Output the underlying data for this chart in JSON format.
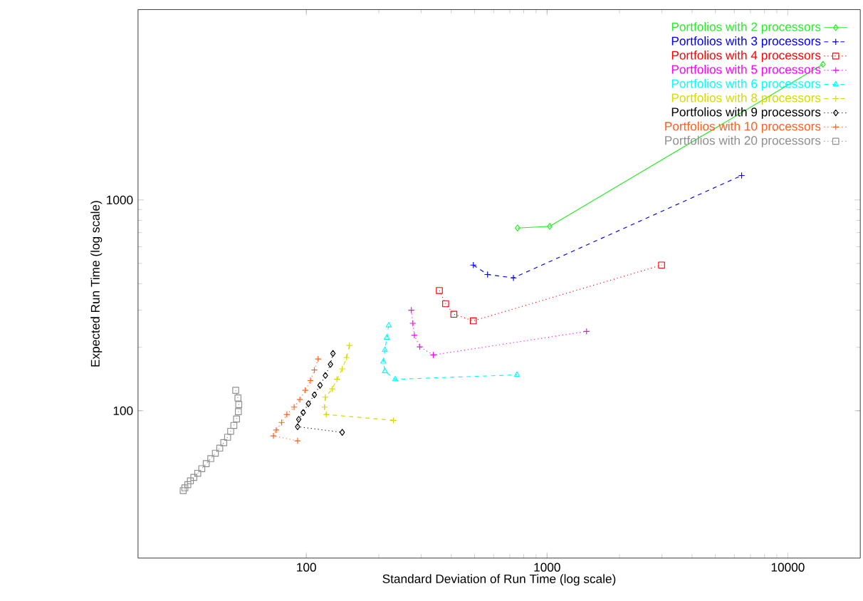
{
  "chart_data": {
    "type": "line",
    "log": "xy",
    "legend": "top right",
    "xlabel": "Standard Deviation of Run Time (log scale)",
    "ylabel": "Expected Run Time (log scale)",
    "xlim": [
      20,
      20000
    ],
    "ylim": [
      20,
      8000
    ],
    "xticks": [
      100,
      1000,
      10000
    ],
    "yticks": [
      100,
      1000
    ],
    "series": [
      {
        "name": "Portfolios with 2 processors",
        "color": "#22ee22",
        "marker": "diamond",
        "line_style": "solid",
        "x": [
          754,
          1026,
          14000
        ],
        "values": [
          736,
          750,
          4400
        ]
      },
      {
        "name": "Portfolios with 3 processors",
        "color": "#0000ff",
        "marker": "cross",
        "line_style": "dashed",
        "x": [
          494,
          566,
          725,
          6430
        ],
        "values": [
          491,
          443,
          427,
          1306
        ]
      },
      {
        "name": "Portfolios with 4 processors",
        "color": "#ff0000",
        "marker": "square",
        "line_style": "dotted",
        "x": [
          357,
          379,
          410,
          494,
          2990
        ],
        "values": [
          372,
          322,
          287,
          267,
          491
        ]
      },
      {
        "name": "Portfolios with  5 processors",
        "color": "#ff00ff",
        "marker": "cross",
        "line_style": "dotted",
        "x": [
          273,
          277,
          281,
          296,
          337,
          1459
        ],
        "values": [
          300,
          260,
          228,
          201,
          184,
          238
        ]
      },
      {
        "name": "Portfolios with 6 processors",
        "color": "#00ffff",
        "marker": "triangle",
        "line_style": "dashed",
        "x": [
          220,
          216,
          212,
          209,
          212,
          234,
          750
        ],
        "values": [
          254,
          222,
          194,
          171,
          154,
          141,
          148
        ]
      },
      {
        "name": "Portfolios with 8 processors",
        "color": "#d8d800",
        "marker": "cross",
        "line_style": "dashed",
        "x": [
          151,
          147,
          141,
          134,
          128,
          120,
          119,
          121,
          230
        ],
        "values": [
          204,
          179,
          158,
          141,
          127,
          116,
          104,
          96,
          90
        ]
      },
      {
        "name": "Portfolios with 9  processors",
        "color": "#000000",
        "marker": "diamond",
        "line_style": "dotted",
        "x": [
          129,
          126,
          120,
          114,
          108,
          102,
          97,
          93,
          92,
          141
        ],
        "values": [
          187,
          166,
          147,
          132,
          119,
          108,
          98,
          91,
          84,
          79
        ]
      },
      {
        "name": "Portfolios with 10 processors",
        "color": "#ff5f1f",
        "marker": "cross",
        "line_style": "dotted",
        "x": [
          112,
          108,
          104,
          99,
          94,
          89,
          83,
          79,
          75,
          73,
          92
        ],
        "values": [
          176,
          156,
          139,
          125,
          113,
          104,
          96,
          88,
          81,
          76,
          72
        ]
      },
      {
        "name": "Portfolios with 20 processors",
        "color": "#8f8f8f",
        "marker": "square",
        "line_style": "dotted",
        "x": [
          50.9,
          52.0,
          52.4,
          52.2,
          51.3,
          50.0,
          48.5,
          47.1,
          45.4,
          43.7,
          41.9,
          40.1,
          38.4,
          36.8,
          35.4,
          34.1,
          33.0,
          32.2,
          31.3,
          30.8
        ],
        "values": [
          125,
          115,
          107,
          99,
          91.4,
          85.2,
          79.9,
          74.9,
          70.6,
          66.5,
          62.9,
          59.3,
          56.1,
          53.1,
          50.5,
          48.3,
          46.5,
          44.6,
          43.1,
          41.8
        ]
      }
    ]
  }
}
